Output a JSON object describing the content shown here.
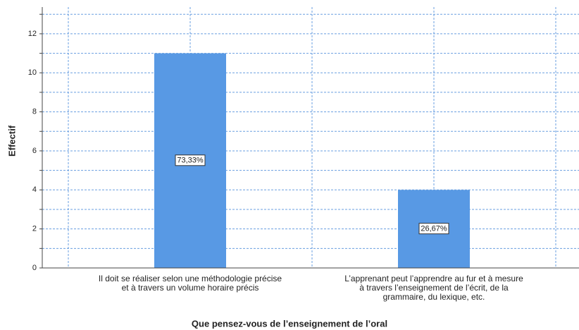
{
  "chart_data": {
    "type": "bar",
    "y_label": "Effectif",
    "x_label": "Que pensez-vous de l’enseignement de l’oral",
    "categories": [
      [
        "Il doit se réaliser selon une méthodologie précise",
        "et à travers un volume horaire précis"
      ],
      [
        "L’apprenant peut l’apprendre au fur et à mesure",
        "à travers l’enseignement de l’écrit, de la",
        "grammaire, du lexique, etc."
      ]
    ],
    "values": [
      11,
      4
    ],
    "percentages": [
      73.33,
      26.67
    ],
    "percentage_labels": [
      "73,33%",
      "26,67%"
    ],
    "color": "#5899e4",
    "ylim": [
      0,
      13.37
    ],
    "yticks": [
      0,
      2,
      4,
      6,
      8,
      10,
      12
    ],
    "minor_yticks": [
      1,
      3,
      5,
      7,
      9,
      11,
      13
    ],
    "grid": true
  }
}
